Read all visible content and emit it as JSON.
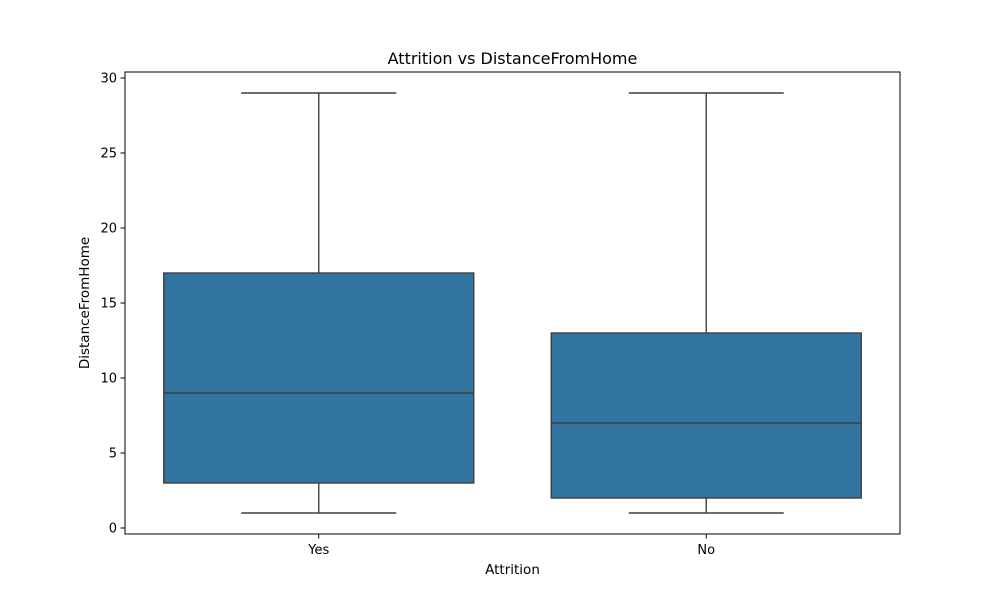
{
  "chart_data": {
    "type": "box",
    "title": "Attrition vs DistanceFromHome",
    "xlabel": "Attrition",
    "ylabel": "DistanceFromHome",
    "categories": [
      "Yes",
      "No"
    ],
    "boxes": [
      {
        "category": "Yes",
        "whisker_low": 1,
        "q1": 3,
        "median": 9,
        "q3": 17,
        "whisker_high": 29
      },
      {
        "category": "No",
        "whisker_low": 1,
        "q1": 2,
        "median": 7,
        "q3": 13,
        "whisker_high": 29
      }
    ],
    "ylim": [
      -0.4,
      30.4
    ],
    "yticks": [
      0,
      5,
      10,
      15,
      20,
      25,
      30
    ],
    "grid": false,
    "box_color": "#3274a1",
    "line_color": "#3f3f3f"
  }
}
